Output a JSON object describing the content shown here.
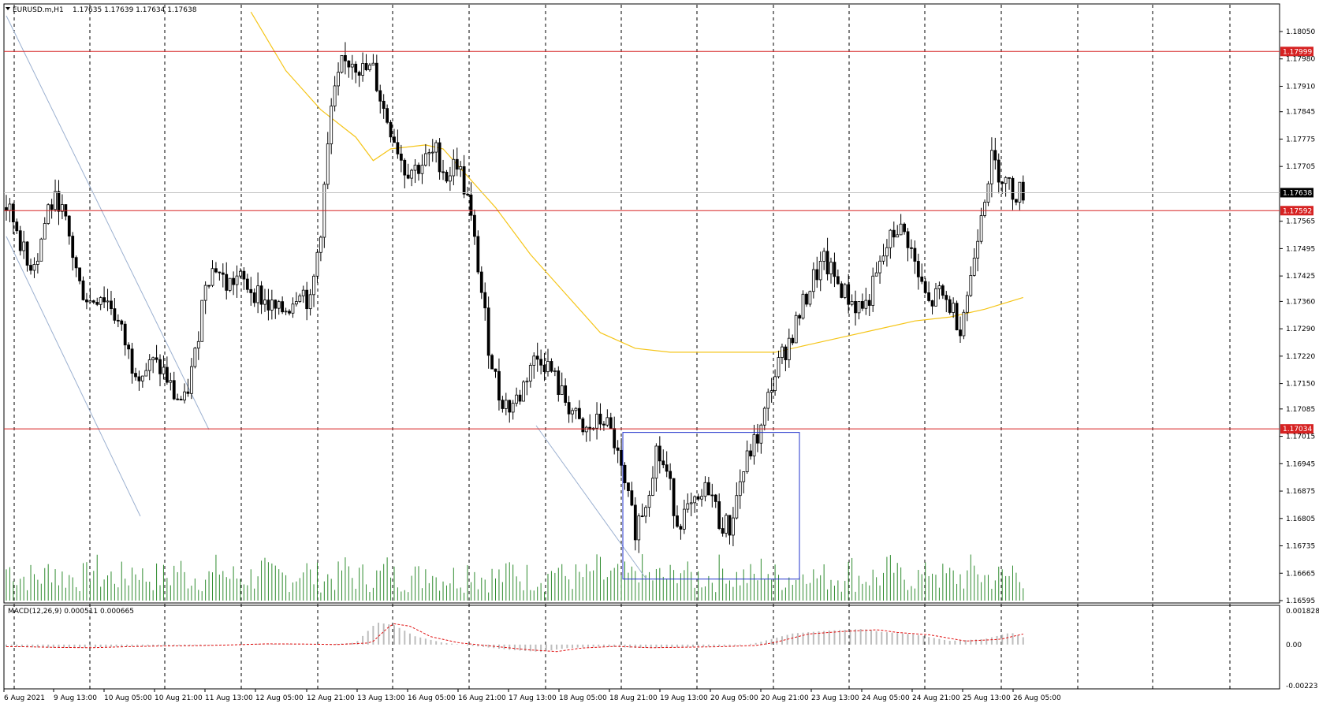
{
  "header": {
    "symbol_tf": "EURUSD.m,H1",
    "ohlc": "1.17635 1.17639 1.17634 1.17638",
    "macd": "MACD(12,26,9) 0.000511 0.000665"
  },
  "colors": {
    "candle": "#000000",
    "volume": "#2e8b2e",
    "ma": "#f5c518",
    "hline": "#d62222",
    "box": "#2233cc",
    "trend": "#9bb0d0",
    "macd_hist": "#bdbdbd",
    "macd_signal": "#e01010",
    "price_marker": "#000000"
  },
  "chart_data": {
    "type": "candlestick",
    "y_ticks": [
      "1.18050",
      "1.17980",
      "1.17910",
      "1.17845",
      "1.17775",
      "1.17705",
      "1.17565",
      "1.17495",
      "1.17425",
      "1.17360",
      "1.17290",
      "1.17220",
      "1.17150",
      "1.17085",
      "1.17015",
      "1.16945",
      "1.16875",
      "1.16805",
      "1.16735",
      "1.16665",
      "1.16595"
    ],
    "ylim": [
      1.16595,
      1.1805
    ],
    "x_ticks": [
      "6 Aug 2021",
      "9 Aug 13:00",
      "10 Aug 05:00",
      "10 Aug 21:00",
      "11 Aug 13:00",
      "12 Aug 05:00",
      "12 Aug 21:00",
      "13 Aug 13:00",
      "16 Aug 05:00",
      "16 Aug 21:00",
      "17 Aug 13:00",
      "18 Aug 05:00",
      "18 Aug 21:00",
      "19 Aug 13:00",
      "20 Aug 05:00",
      "20 Aug 21:00",
      "23 Aug 13:00",
      "24 Aug 05:00",
      "24 Aug 21:00",
      "25 Aug 13:00",
      "26 Aug 05:00"
    ],
    "levels": [
      {
        "label": "1.17999",
        "value": 1.17999
      },
      {
        "label": "1.17592",
        "value": 1.17592
      },
      {
        "label": "1.17034",
        "value": 1.17034
      }
    ],
    "current_price": {
      "label": "1.17638",
      "value": 1.17638
    },
    "close_path": [
      [
        0,
        1.176
      ],
      [
        6,
        1.1755
      ],
      [
        12,
        1.1745
      ],
      [
        18,
        1.1748
      ],
      [
        24,
        1.176
      ],
      [
        30,
        1.1762
      ],
      [
        36,
        1.1752
      ],
      [
        42,
        1.174
      ],
      [
        48,
        1.1736
      ],
      [
        54,
        1.1738
      ],
      [
        60,
        1.1735
      ],
      [
        66,
        1.1728
      ],
      [
        72,
        1.172
      ],
      [
        78,
        1.1718
      ],
      [
        84,
        1.172
      ],
      [
        90,
        1.1718
      ],
      [
        96,
        1.1712
      ],
      [
        102,
        1.171
      ],
      [
        108,
        1.1722
      ],
      [
        114,
        1.1742
      ],
      [
        120,
        1.1745
      ],
      [
        126,
        1.174
      ],
      [
        132,
        1.1742
      ],
      [
        138,
        1.174
      ],
      [
        144,
        1.1738
      ],
      [
        150,
        1.1735
      ],
      [
        156,
        1.1733
      ],
      [
        162,
        1.1735
      ],
      [
        168,
        1.174
      ],
      [
        174,
        1.1735
      ],
      [
        180,
        1.1755
      ],
      [
        186,
        1.1785
      ],
      [
        192,
        1.1796
      ],
      [
        198,
        1.1798
      ],
      [
        204,
        1.1795
      ],
      [
        210,
        1.1795
      ],
      [
        216,
        1.1785
      ],
      [
        222,
        1.1778
      ],
      [
        228,
        1.177
      ],
      [
        234,
        1.177
      ],
      [
        240,
        1.1772
      ],
      [
        246,
        1.1774
      ],
      [
        252,
        1.1768
      ],
      [
        258,
        1.1772
      ],
      [
        264,
        1.1762
      ],
      [
        270,
        1.1745
      ],
      [
        276,
        1.1725
      ],
      [
        282,
        1.1712
      ],
      [
        288,
        1.1709
      ],
      [
        294,
        1.1712
      ],
      [
        300,
        1.172
      ],
      [
        306,
        1.1722
      ],
      [
        312,
        1.1718
      ],
      [
        318,
        1.1712
      ],
      [
        324,
        1.1708
      ],
      [
        330,
        1.1702
      ],
      [
        336,
        1.1704
      ],
      [
        342,
        1.1706
      ],
      [
        348,
        1.17
      ],
      [
        354,
        1.1688
      ],
      [
        360,
        1.1678
      ],
      [
        366,
        1.1685
      ],
      [
        372,
        1.1698
      ],
      [
        378,
        1.1692
      ],
      [
        384,
        1.168
      ],
      [
        390,
        1.1682
      ],
      [
        396,
        1.1684
      ],
      [
        402,
        1.1689
      ],
      [
        408,
        1.168
      ],
      [
        414,
        1.1678
      ],
      [
        420,
        1.169
      ],
      [
        426,
        1.1698
      ],
      [
        432,
        1.1703
      ],
      [
        438,
        1.1715
      ],
      [
        444,
        1.1722
      ],
      [
        450,
        1.1728
      ],
      [
        456,
        1.1735
      ],
      [
        462,
        1.1742
      ],
      [
        468,
        1.1746
      ],
      [
        474,
        1.1742
      ],
      [
        480,
        1.1738
      ],
      [
        486,
        1.1735
      ],
      [
        492,
        1.1735
      ],
      [
        498,
        1.1742
      ],
      [
        504,
        1.175
      ],
      [
        510,
        1.1755
      ],
      [
        516,
        1.1752
      ],
      [
        522,
        1.1742
      ],
      [
        528,
        1.1735
      ],
      [
        534,
        1.1738
      ],
      [
        540,
        1.1735
      ],
      [
        546,
        1.173
      ],
      [
        552,
        1.1742
      ],
      [
        558,
        1.176
      ],
      [
        564,
        1.1772
      ],
      [
        570,
        1.1768
      ],
      [
        576,
        1.1764
      ],
      [
        582,
        1.1764
      ]
    ],
    "ma_path": [
      [
        140,
        1.181
      ],
      [
        160,
        1.1795
      ],
      [
        180,
        1.1785
      ],
      [
        200,
        1.1778
      ],
      [
        210,
        1.1772
      ],
      [
        220,
        1.1775
      ],
      [
        240,
        1.1776
      ],
      [
        250,
        1.1775
      ],
      [
        260,
        1.177
      ],
      [
        280,
        1.176
      ],
      [
        300,
        1.1748
      ],
      [
        320,
        1.1738
      ],
      [
        340,
        1.1728
      ],
      [
        360,
        1.1724
      ],
      [
        380,
        1.1723
      ],
      [
        400,
        1.1723
      ],
      [
        420,
        1.1723
      ],
      [
        440,
        1.1723
      ],
      [
        460,
        1.1725
      ],
      [
        480,
        1.1727
      ],
      [
        500,
        1.1729
      ],
      [
        520,
        1.1731
      ],
      [
        540,
        1.1732
      ],
      [
        560,
        1.1734
      ],
      [
        582,
        1.1737
      ]
    ],
    "macd_path": [
      [
        0,
        -0.00012
      ],
      [
        20,
        -0.00016
      ],
      [
        40,
        -0.00018
      ],
      [
        60,
        -0.00012
      ],
      [
        80,
        -8e-05
      ],
      [
        100,
        -6e-05
      ],
      [
        120,
        -2e-05
      ],
      [
        140,
        4e-05
      ],
      [
        160,
        3e-05
      ],
      [
        180,
        0.0
      ],
      [
        200,
        0.0001
      ],
      [
        212,
        0.0012
      ],
      [
        222,
        0.00105
      ],
      [
        234,
        0.00045
      ],
      [
        250,
        0.0001
      ],
      [
        270,
        -0.0001
      ],
      [
        290,
        -0.0003
      ],
      [
        306,
        -0.0004
      ],
      [
        320,
        -0.0002
      ],
      [
        340,
        -0.0001
      ],
      [
        360,
        -0.00018
      ],
      [
        380,
        -0.00015
      ],
      [
        400,
        -0.00012
      ],
      [
        420,
        -5e-05
      ],
      [
        430,
        0.0001
      ],
      [
        450,
        0.0006
      ],
      [
        470,
        0.00075
      ],
      [
        490,
        0.00085
      ],
      [
        500,
        0.0007
      ],
      [
        520,
        0.00055
      ],
      [
        540,
        0.0002
      ],
      [
        560,
        0.0003
      ],
      [
        575,
        0.00065
      ],
      [
        582,
        0.0004
      ]
    ],
    "macd_yticks": [
      "0.001828",
      "0.00",
      "-0.00223"
    ],
    "macd_ylim": [
      -0.00223,
      0.001828
    ]
  }
}
